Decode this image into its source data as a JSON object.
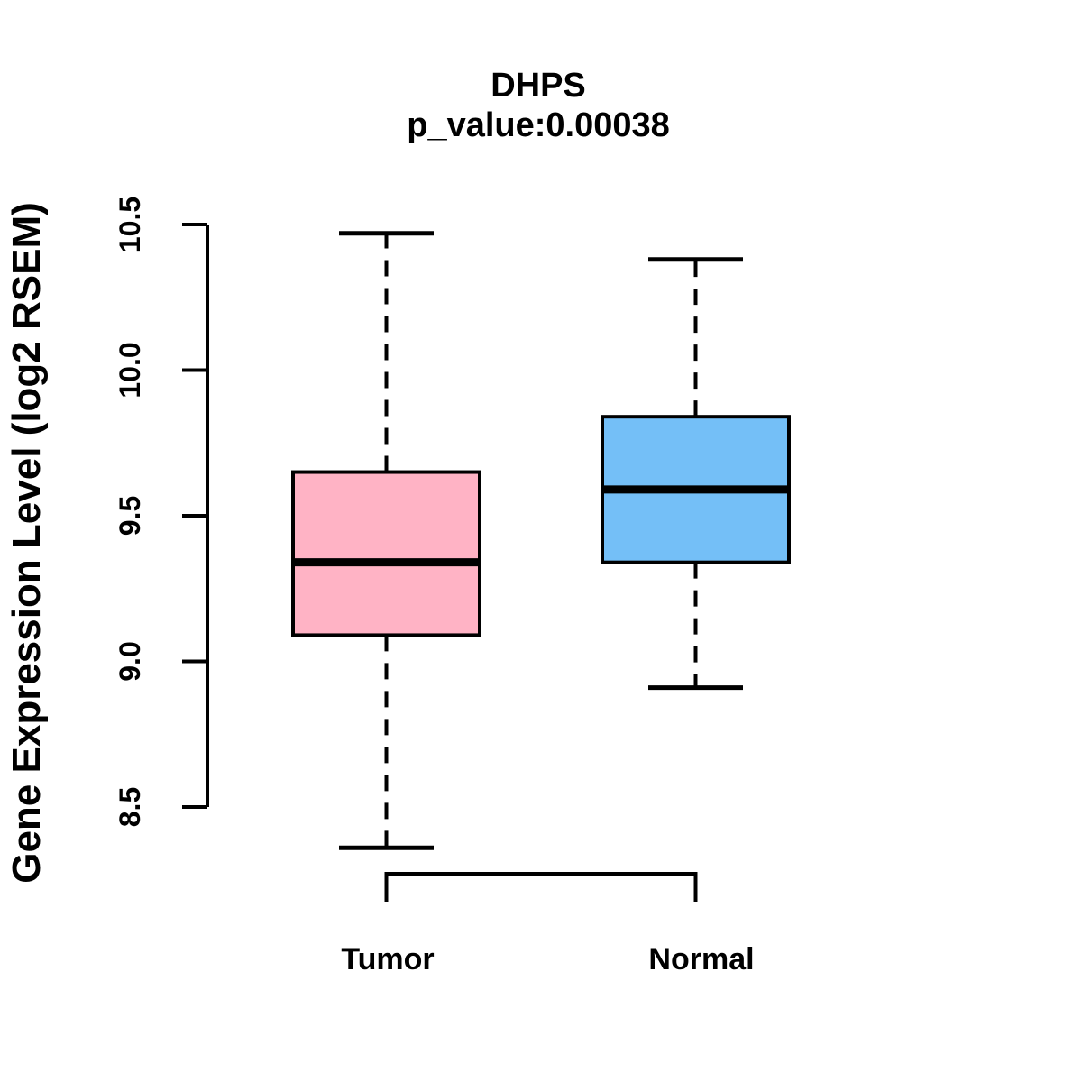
{
  "chart_data": {
    "type": "boxplot",
    "title": "DHPS",
    "subtitle": "p_value:0.00038",
    "ylabel": "Gene Expression Level (log2 RSEM)",
    "y_axis": {
      "min": 8.5,
      "max": 10.5,
      "ticks": [
        8.5,
        9.0,
        9.5,
        10.0,
        10.5
      ],
      "tick_labels": [
        "8.5",
        "9.0",
        "9.5",
        "10.0",
        "10.5"
      ]
    },
    "categories": [
      "Tumor",
      "Normal"
    ],
    "groups": [
      {
        "label": "Tumor",
        "fill_color": "#FFB3C5",
        "whisker_low": 8.36,
        "q1": 9.09,
        "median": 9.34,
        "q3": 9.65,
        "whisker_high": 10.47
      },
      {
        "label": "Normal",
        "fill_color": "#74BFF7",
        "whisker_low": 8.91,
        "q1": 9.34,
        "median": 9.59,
        "q3": 9.84,
        "whisker_high": 10.38
      }
    ],
    "line_color": "#000000",
    "background_color": "#FFFFFF",
    "legend": "none",
    "grid": "off"
  }
}
